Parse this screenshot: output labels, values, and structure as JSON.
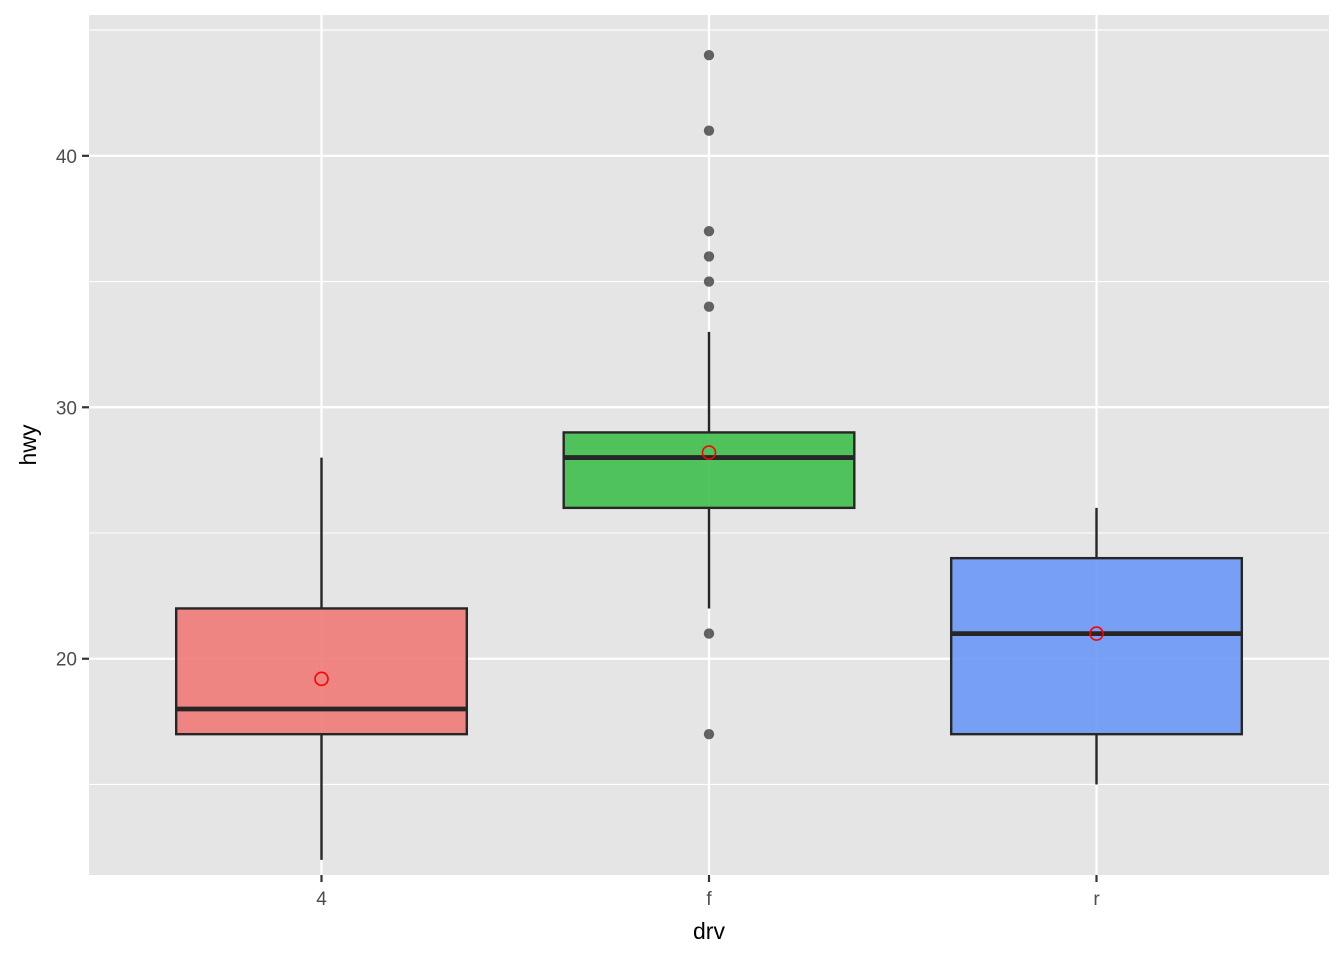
{
  "chart_data": {
    "type": "boxplot",
    "title": "",
    "xlabel": "drv",
    "ylabel": "hwy",
    "categories": [
      "4",
      "f",
      "r"
    ],
    "ylim": [
      11.4,
      45.6
    ],
    "y_ticks": [
      20,
      30,
      40
    ],
    "y_minor_ticks": [
      15,
      25,
      35,
      45
    ],
    "grid": true,
    "legend": "none",
    "panel_background": "#e5e5e5",
    "grid_color": "#ffffff",
    "box_outline_color": "#262626",
    "mean_marker_color": "#ff0000",
    "outlier_color": "#333333",
    "boxes": [
      {
        "category": "4",
        "fill": "#f07e7b",
        "whisker_low": 12,
        "q1": 17,
        "median": 18,
        "q3": 22,
        "whisker_high": 28,
        "mean": 19.2,
        "outliers": []
      },
      {
        "category": "f",
        "fill": "#44bf52",
        "whisker_low": 22,
        "q1": 26,
        "median": 28,
        "q3": 29,
        "whisker_high": 33,
        "mean": 28.2,
        "outliers": [
          17,
          21,
          34,
          35,
          36,
          37,
          41,
          44
        ]
      },
      {
        "category": "r",
        "fill": "#6f9bf6",
        "whisker_low": 15,
        "q1": 17,
        "median": 21,
        "q3": 24,
        "whisker_high": 26,
        "mean": 21.0,
        "outliers": []
      }
    ]
  }
}
